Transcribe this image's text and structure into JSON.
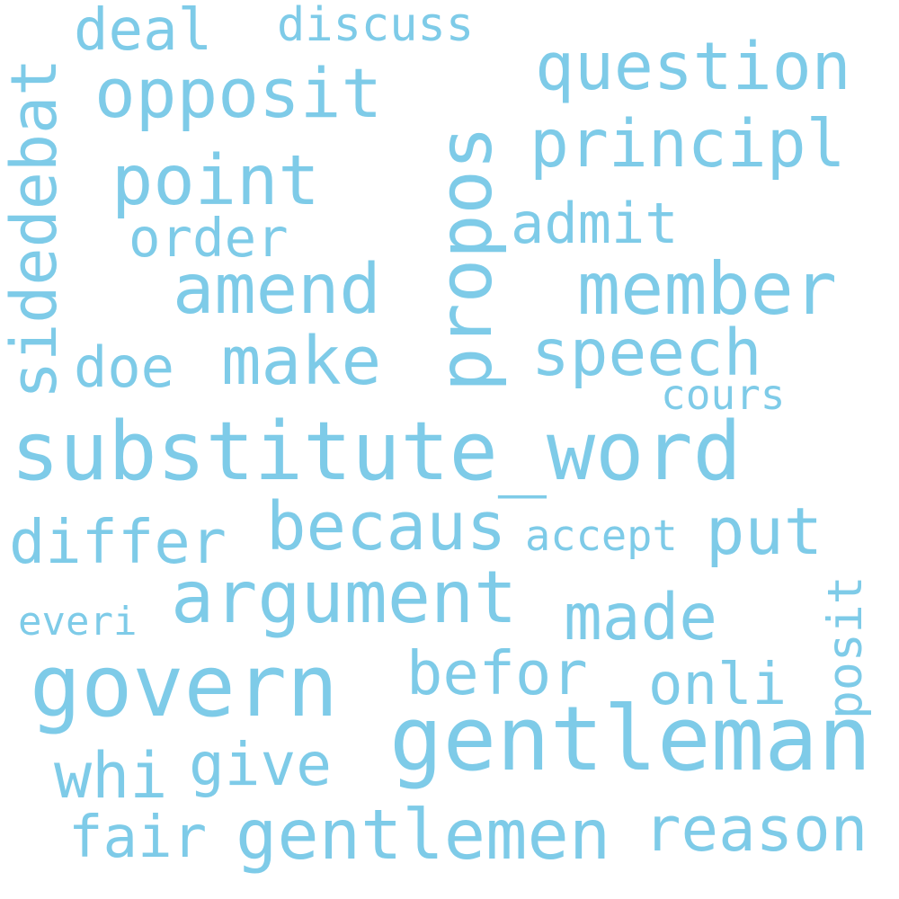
{
  "canvas": {
    "background": "#ffffff",
    "word_color": "#7ecbe8"
  },
  "words": {
    "substitute_word": "substitute_word",
    "gentleman": "gentleman",
    "govern": "govern",
    "member": "member",
    "argument": "argument",
    "propos": "propos",
    "gentlemen": "gentlemen",
    "opposit": "opposit",
    "amend": "amend",
    "becaus": "becaus",
    "question": "question",
    "principl": "principl",
    "point": "point",
    "make": "make",
    "speech": "speech",
    "made": "made",
    "reason": "reason",
    "sidedebat": "sidedebat",
    "differ": "differ",
    "put": "put",
    "befor": "befor",
    "onli": "onli",
    "whi": "whi",
    "give": "give",
    "fair": "fair",
    "deal": "deal",
    "order": "order",
    "admit": "admit",
    "doe": "doe",
    "discuss": "discuss",
    "cours": "cours",
    "accept": "accept",
    "everi": "everi",
    "posit": "posit"
  }
}
